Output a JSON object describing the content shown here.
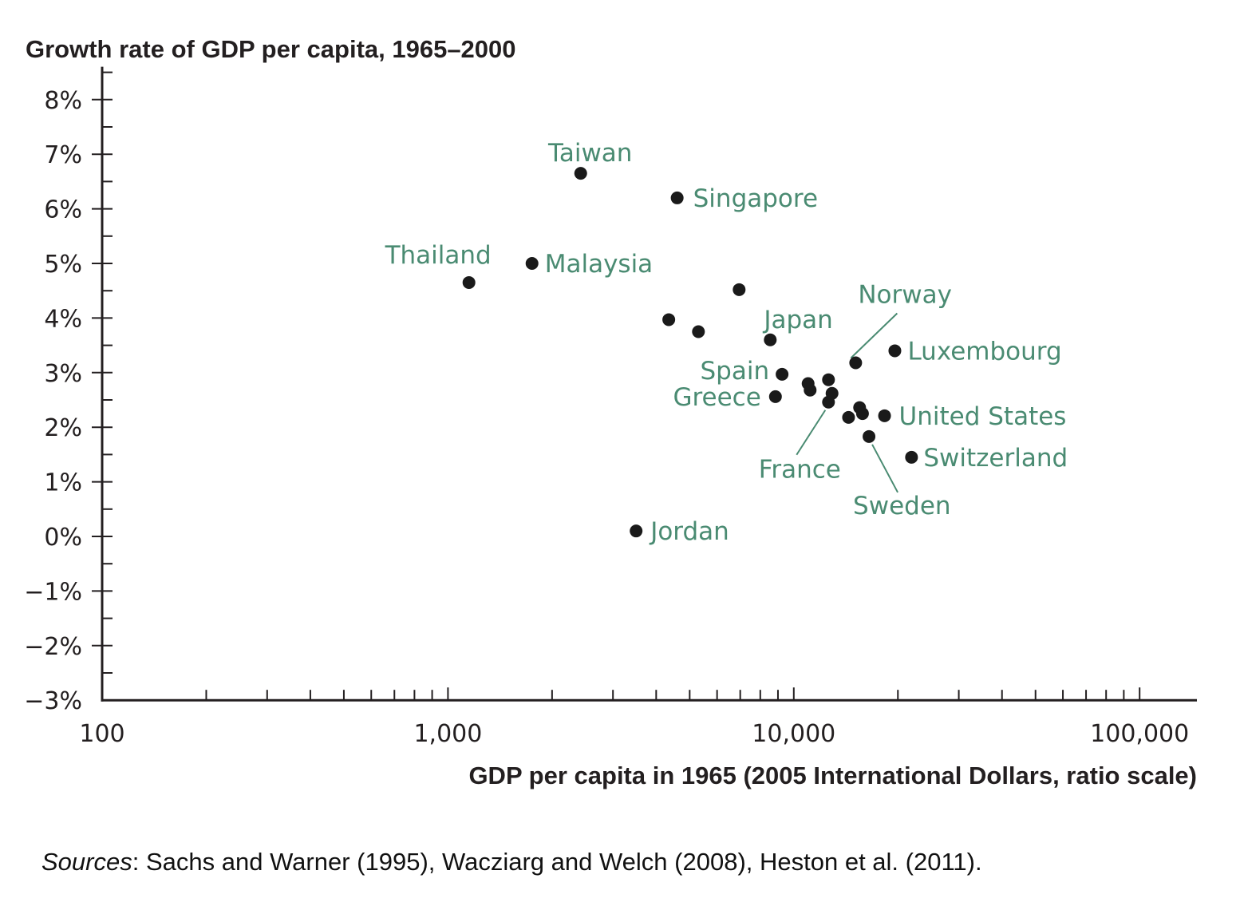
{
  "source": {
    "prefix": "Sources",
    "text": ": Sachs and Warner (1995), Wacziarg and Welch (2008), Heston et al. (2011)."
  },
  "chart_data": {
    "type": "scatter",
    "title": "",
    "ylabel": "Growth rate of GDP per capita, 1965–2000",
    "xlabel": "GDP per capita in 1965 (2005 International Dollars, ratio scale)",
    "x_scale": "log",
    "xlim": [
      100,
      150000
    ],
    "ylim": [
      -3,
      8.5
    ],
    "x_ticks": [
      {
        "value": 100,
        "label": "100"
      },
      {
        "value": 1000,
        "label": "1,000"
      },
      {
        "value": 10000,
        "label": "10,000"
      },
      {
        "value": 100000,
        "label": "100,000"
      }
    ],
    "y_ticks": [
      {
        "value": 8,
        "label": "8%"
      },
      {
        "value": 7,
        "label": "7%"
      },
      {
        "value": 6,
        "label": "6%"
      },
      {
        "value": 5,
        "label": "5%"
      },
      {
        "value": 4,
        "label": "4%"
      },
      {
        "value": 3,
        "label": "3%"
      },
      {
        "value": 2,
        "label": "2%"
      },
      {
        "value": 1,
        "label": "1%"
      },
      {
        "value": 0,
        "label": "0%"
      },
      {
        "value": -1,
        "label": "−1%"
      },
      {
        "value": -2,
        "label": "−2%"
      },
      {
        "value": -3,
        "label": "−3%"
      }
    ],
    "grid": false,
    "colors": {
      "point": "#1a1a1a",
      "label": "#4a8b72",
      "axis": "#231f20"
    },
    "points": [
      {
        "x": 1150,
        "y": 4.65,
        "label": "Thailand"
      },
      {
        "x": 1750,
        "y": 5.0,
        "label": "Malaysia"
      },
      {
        "x": 2420,
        "y": 6.65,
        "label": "Taiwan"
      },
      {
        "x": 4600,
        "y": 6.2,
        "label": "Singapore"
      },
      {
        "x": 3500,
        "y": 0.1,
        "label": "Jordan"
      },
      {
        "x": 4350,
        "y": 3.97,
        "label": ""
      },
      {
        "x": 5300,
        "y": 3.75,
        "label": ""
      },
      {
        "x": 6950,
        "y": 4.52,
        "label": ""
      },
      {
        "x": 8550,
        "y": 3.6,
        "label": "Japan"
      },
      {
        "x": 9250,
        "y": 2.97,
        "label": "Spain"
      },
      {
        "x": 8850,
        "y": 2.56,
        "label": "Greece"
      },
      {
        "x": 11000,
        "y": 2.8,
        "label": ""
      },
      {
        "x": 11150,
        "y": 2.68,
        "label": ""
      },
      {
        "x": 12600,
        "y": 2.87,
        "label": ""
      },
      {
        "x": 12900,
        "y": 2.62,
        "label": ""
      },
      {
        "x": 12600,
        "y": 2.46,
        "label": "France"
      },
      {
        "x": 14400,
        "y": 2.18,
        "label": ""
      },
      {
        "x": 15100,
        "y": 3.18,
        "label": "Norway"
      },
      {
        "x": 15500,
        "y": 2.36,
        "label": ""
      },
      {
        "x": 15800,
        "y": 2.25,
        "label": ""
      },
      {
        "x": 16500,
        "y": 1.83,
        "label": "Sweden"
      },
      {
        "x": 18300,
        "y": 2.21,
        "label": "United States"
      },
      {
        "x": 19600,
        "y": 3.4,
        "label": "Luxembourg"
      },
      {
        "x": 21900,
        "y": 1.45,
        "label": "Switzerland"
      }
    ]
  }
}
